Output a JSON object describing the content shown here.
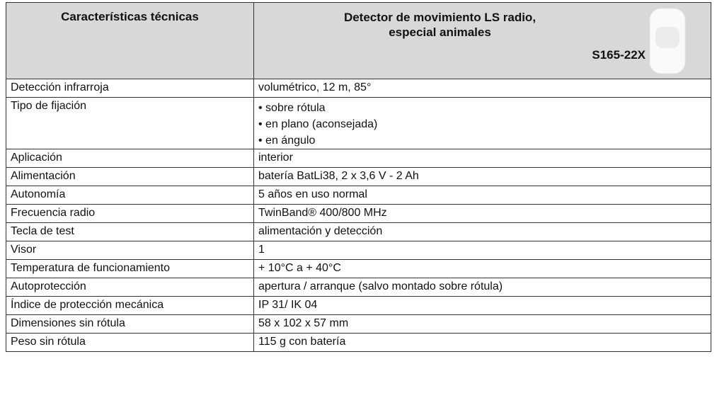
{
  "header": {
    "left": "Características técnicas",
    "title": [
      "Detector de movimiento LS radio,",
      "especial animales"
    ],
    "code": "S165-22X"
  },
  "table": {
    "rows": [
      [
        "Detección infrarroja",
        "volumétrico, 12 m, 85°"
      ],
      [
        "Tipo de fijación",
        [
          "• sobre rótula",
          "• en plano (aconsejada)",
          "• en ángulo"
        ]
      ],
      [
        "Aplicación",
        "interior"
      ],
      [
        "Alimentación",
        "batería BatLi38, 2 x 3,6 V - 2 Ah"
      ],
      [
        "Autonomía",
        "5 años en uso normal"
      ],
      [
        "Frecuencia radio",
        "TwinBand® 400/800 MHz"
      ],
      [
        "Tecla de test",
        "alimentación y detección"
      ],
      [
        "Visor",
        "1"
      ],
      [
        "Temperatura de funcionamiento",
        "+ 10°C a + 40°C"
      ],
      [
        "Autoprotección",
        "apertura / arranque (salvo montado sobre rótula)"
      ],
      [
        "Índice de protección mecánica",
        "IP 31/ IK 04"
      ],
      [
        "Dimensiones sin rótula",
        "58 x 102 x 57 mm"
      ],
      [
        "Peso sin rótula",
        "115 g con batería"
      ]
    ]
  }
}
